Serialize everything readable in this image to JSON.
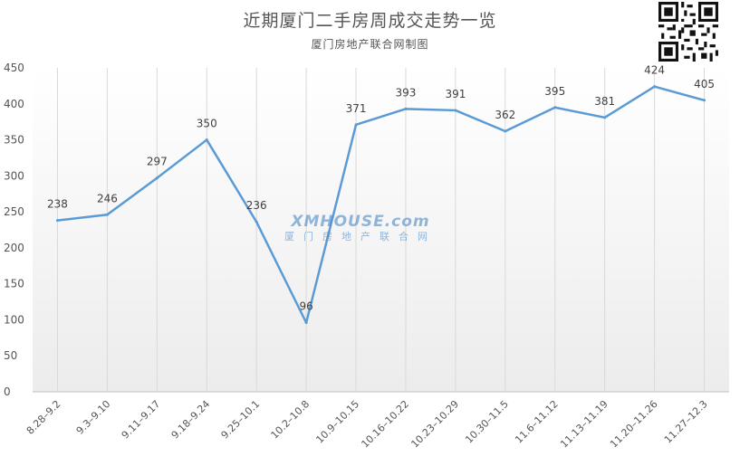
{
  "title": "近期厦门二手房周成交走势一览",
  "subtitle": "厦门房地产联合网制图",
  "watermark": {
    "logo": "XMHOUSE.com",
    "text": "厦门房地产联合网"
  },
  "colors": {
    "line": "#5b9bd5",
    "axis_text": "#555555",
    "grid": "#d9d9d9"
  },
  "chart_data": {
    "type": "line",
    "categories": [
      "8.28–9.2",
      "9.3–9.10",
      "9.11–9.17",
      "9.18–9.24",
      "9.25–10.1",
      "10.2–10.8",
      "10.9–10.15",
      "10.16–10.22",
      "10.23–10.29",
      "10.30–11.5",
      "11.6–11.12",
      "11.13–11.19",
      "11.20–11.26",
      "11.27–12.3"
    ],
    "series": [
      {
        "values": [
          238,
          246,
          297,
          350,
          236,
          96,
          371,
          393,
          391,
          362,
          395,
          381,
          424,
          405
        ]
      }
    ],
    "ylim": [
      0,
      450
    ],
    "yticks": [
      0,
      50,
      100,
      150,
      200,
      250,
      300,
      350,
      400,
      450
    ],
    "data_labels": true,
    "vertical_grid": true,
    "legend": "none"
  }
}
